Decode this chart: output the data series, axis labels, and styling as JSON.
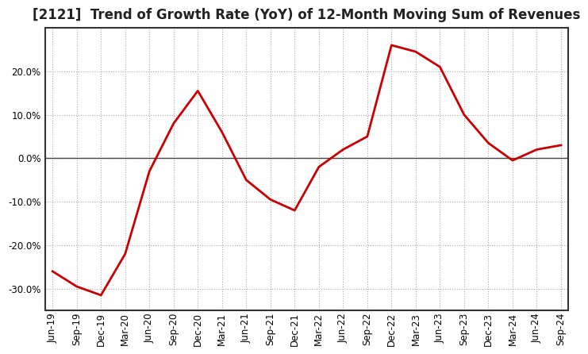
{
  "title": "[2121]  Trend of Growth Rate (YoY) of 12-Month Moving Sum of Revenues",
  "x_labels": [
    "Jun-19",
    "Sep-19",
    "Dec-19",
    "Mar-20",
    "Jun-20",
    "Sep-20",
    "Dec-20",
    "Mar-21",
    "Jun-21",
    "Sep-21",
    "Dec-21",
    "Mar-22",
    "Jun-22",
    "Sep-22",
    "Dec-22",
    "Mar-23",
    "Jun-23",
    "Sep-23",
    "Dec-23",
    "Mar-24",
    "Jun-24",
    "Sep-24"
  ],
  "y_values": [
    -26.0,
    -29.5,
    -31.5,
    -22.0,
    -3.0,
    8.0,
    15.5,
    6.0,
    -5.0,
    -9.5,
    -12.0,
    -2.0,
    2.0,
    5.0,
    26.0,
    24.5,
    21.0,
    10.0,
    3.5,
    -0.5,
    2.0,
    3.0
  ],
  "line_color": "#cc0000",
  "line_width": 2.0,
  "background_color": "#ffffff",
  "plot_bg_color": "#ffffff",
  "grid_color": "#aaaaaa",
  "zero_line_color": "#444444",
  "border_color": "#333333",
  "ylim": [
    -35,
    30
  ],
  "yticks": [
    -30,
    -20,
    -10,
    0,
    10,
    20
  ],
  "title_fontsize": 12,
  "tick_fontsize": 8.5
}
